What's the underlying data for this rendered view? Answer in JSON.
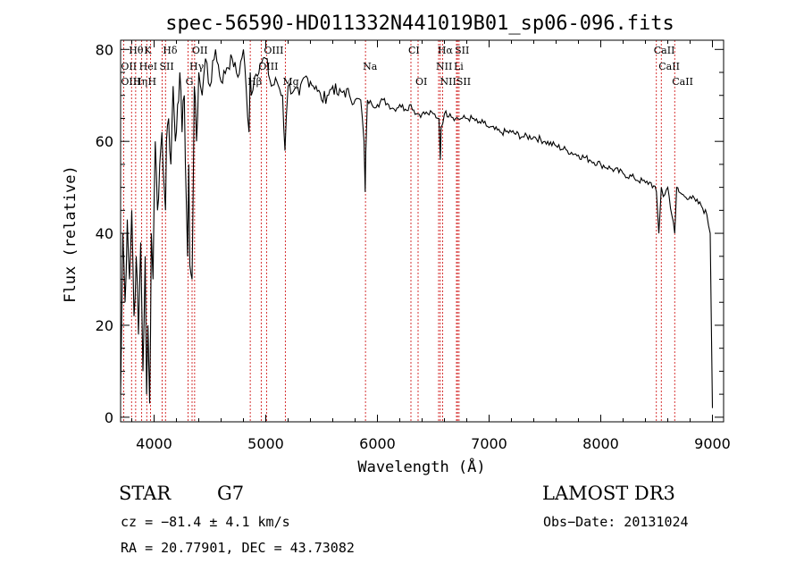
{
  "chart_data": {
    "type": "line",
    "title": "spec-56590-HD011332N441019B01_sp06-096.fits",
    "xlabel": "Wavelength (Å)",
    "ylabel": "Flux (relative)",
    "xlim": [
      3700,
      9100
    ],
    "ylim": [
      -1,
      82
    ],
    "xticks": [
      4000,
      5000,
      6000,
      7000,
      8000,
      9000
    ],
    "yticks": [
      0,
      20,
      40,
      60,
      80
    ],
    "series": [
      {
        "name": "flux",
        "x": [
          3700,
          3720,
          3740,
          3760,
          3780,
          3800,
          3820,
          3840,
          3860,
          3880,
          3900,
          3920,
          3933,
          3945,
          3960,
          3968,
          3975,
          3990,
          4010,
          4030,
          4050,
          4070,
          4090,
          4102,
          4110,
          4130,
          4150,
          4170,
          4190,
          4210,
          4230,
          4250,
          4270,
          4290,
          4300,
          4310,
          4320,
          4340,
          4350,
          4360,
          4380,
          4400,
          4430,
          4460,
          4500,
          4550,
          4600,
          4650,
          4700,
          4750,
          4800,
          4850,
          4861,
          4870,
          4900,
          4950,
          5000,
          5050,
          5100,
          5150,
          5172,
          5183,
          5200,
          5250,
          5300,
          5350,
          5400,
          5450,
          5500,
          5550,
          5600,
          5650,
          5700,
          5750,
          5800,
          5850,
          5880,
          5890,
          5896,
          5910,
          5950,
          6000,
          6050,
          6100,
          6150,
          6200,
          6250,
          6300,
          6350,
          6400,
          6450,
          6500,
          6550,
          6563,
          6570,
          6600,
          6650,
          6700,
          6750,
          6800,
          6850,
          6900,
          6950,
          7000,
          7100,
          7200,
          7300,
          7400,
          7500,
          7600,
          7700,
          7800,
          7900,
          8000,
          8100,
          8200,
          8300,
          8400,
          8450,
          8498,
          8520,
          8542,
          8560,
          8600,
          8662,
          8680,
          8700,
          8750,
          8800,
          8850,
          8900,
          8950,
          8980,
          8990,
          9000
        ],
        "values": [
          5,
          40,
          25,
          43,
          30,
          45,
          22,
          35,
          18,
          38,
          10,
          35,
          5,
          20,
          3,
          18,
          40,
          30,
          60,
          45,
          55,
          62,
          50,
          45,
          60,
          65,
          55,
          72,
          60,
          68,
          75,
          62,
          70,
          45,
          35,
          55,
          33,
          30,
          50,
          72,
          60,
          75,
          70,
          78,
          72,
          80,
          73,
          76,
          78,
          74,
          80,
          62,
          75,
          70,
          74,
          77,
          78,
          72,
          73,
          70,
          58,
          65,
          72,
          71,
          70,
          74,
          73,
          72,
          69,
          70,
          72,
          70,
          71,
          70,
          69,
          69,
          60,
          49,
          58,
          69,
          68,
          68,
          69,
          68,
          67,
          68,
          67,
          68,
          66,
          66,
          66,
          66,
          65,
          56,
          63,
          66,
          66,
          65,
          65,
          65,
          65,
          64,
          64,
          63,
          62,
          62,
          61,
          61,
          60,
          59,
          58,
          57,
          56,
          55,
          54,
          53,
          52,
          51,
          51,
          49,
          40,
          50,
          48,
          50,
          40,
          50,
          49,
          48,
          48,
          47,
          46,
          44,
          40,
          20,
          2
        ]
      }
    ],
    "emission_lines": [
      {
        "label": "Hθ",
        "wl": 3798,
        "row": 0
      },
      {
        "label": "K",
        "wl": 3934,
        "row": 0
      },
      {
        "label": "Hδ",
        "wl": 4102,
        "row": 0
      },
      {
        "label": "OII",
        "wl": 4363,
        "row": 0
      },
      {
        "label": "OIII",
        "wl": 5007,
        "row": 0
      },
      {
        "label": "Na",
        "wl": 5893,
        "row": 1
      },
      {
        "label": "CI",
        "wl": 6300,
        "row": 0
      },
      {
        "label": "Hα",
        "wl": 6563,
        "row": 0
      },
      {
        "label": "SII",
        "wl": 6717,
        "row": 0
      },
      {
        "label": "CaII",
        "wl": 8498,
        "row": 0
      },
      {
        "label": "OII",
        "wl": 3727,
        "row": 1
      },
      {
        "label": "HeI",
        "wl": 3889,
        "row": 1
      },
      {
        "label": "SII",
        "wl": 4072,
        "row": 1
      },
      {
        "label": "Hγ",
        "wl": 4340,
        "row": 1
      },
      {
        "label": "OIII",
        "wl": 4959,
        "row": 1
      },
      {
        "label": "NII",
        "wl": 6548,
        "row": 1
      },
      {
        "label": "Li",
        "wl": 6708,
        "row": 1
      },
      {
        "label": "CaII",
        "wl": 8542,
        "row": 1
      },
      {
        "label": "OIII",
        "wl": 3727,
        "row": 2
      },
      {
        "label": "Hη",
        "wl": 3835,
        "row": 2
      },
      {
        "label": "H",
        "wl": 3968,
        "row": 2
      },
      {
        "label": "G",
        "wl": 4305,
        "row": 2
      },
      {
        "label": "Hβ",
        "wl": 4861,
        "row": 2
      },
      {
        "label": "Mg",
        "wl": 5175,
        "row": 2
      },
      {
        "label": "OI",
        "wl": 6364,
        "row": 2
      },
      {
        "label": "NII",
        "wl": 6584,
        "row": 2
      },
      {
        "label": "SII",
        "wl": 6731,
        "row": 2
      },
      {
        "label": "CaII",
        "wl": 8662,
        "row": 2
      }
    ]
  },
  "info": {
    "object_type": "STAR",
    "subclass": "G7",
    "survey": "LAMOST DR3",
    "redshift": "cz = −81.4 ± 4.1 km/s",
    "obs_date": "Obs−Date: 20131024",
    "coords": "RA =  20.77901, DEC =  43.73082"
  },
  "colors": {
    "spectrum": "#000000",
    "lines": "#cc0000",
    "axes": "#000000"
  }
}
